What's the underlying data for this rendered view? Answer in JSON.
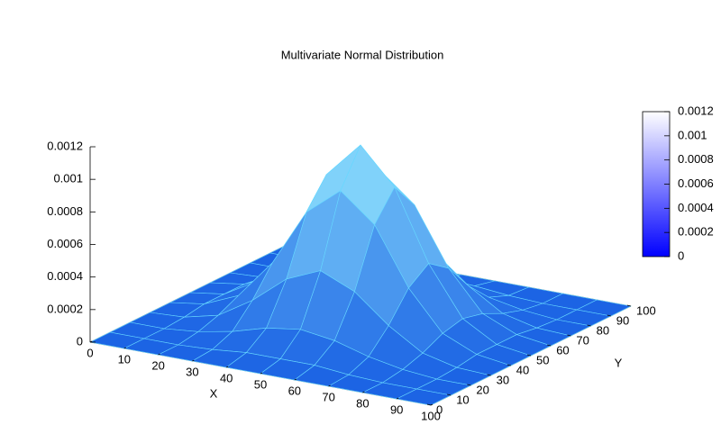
{
  "chart_data": {
    "type": "surface",
    "title": "Multivariate Normal Distribution",
    "xlabel": "X",
    "ylabel": "Y",
    "x": [
      0,
      10,
      20,
      30,
      40,
      50,
      60,
      70,
      80,
      90,
      100
    ],
    "y": [
      0,
      10,
      20,
      30,
      40,
      50,
      60,
      70,
      80,
      90,
      100
    ],
    "z": [
      [
        0,
        0,
        0,
        0,
        0,
        0,
        0,
        0,
        0,
        0,
        0
      ],
      [
        0,
        0,
        0,
        1e-05,
        3e-05,
        3e-05,
        3e-05,
        1e-05,
        0,
        0,
        0
      ],
      [
        0,
        0,
        2e-05,
        6e-05,
        0.00012,
        0.00015,
        0.00012,
        6e-05,
        2e-05,
        0,
        0
      ],
      [
        0,
        1e-05,
        6e-05,
        0.00019,
        0.00036,
        0.00045,
        0.00036,
        0.00019,
        6e-05,
        1e-05,
        0
      ],
      [
        0,
        3e-05,
        0.00012,
        0.00036,
        0.00071,
        0.00088,
        0.00071,
        0.00036,
        0.00012,
        3e-05,
        0
      ],
      [
        0,
        3e-05,
        0.00015,
        0.00045,
        0.00088,
        0.0011,
        0.00088,
        0.00045,
        0.00015,
        3e-05,
        0
      ],
      [
        0,
        3e-05,
        0.00012,
        0.00036,
        0.00071,
        0.00088,
        0.00071,
        0.00036,
        0.00012,
        3e-05,
        0
      ],
      [
        0,
        1e-05,
        6e-05,
        0.00019,
        0.00036,
        0.00045,
        0.00036,
        0.00019,
        6e-05,
        1e-05,
        0
      ],
      [
        0,
        0,
        2e-05,
        6e-05,
        0.00012,
        0.00015,
        0.00012,
        6e-05,
        2e-05,
        0,
        0
      ],
      [
        0,
        0,
        0,
        1e-05,
        3e-05,
        3e-05,
        3e-05,
        1e-05,
        0,
        0,
        0
      ],
      [
        0,
        0,
        0,
        0,
        0,
        0,
        0,
        0,
        0,
        0,
        0
      ]
    ],
    "xlim": [
      0,
      100
    ],
    "ylim": [
      0,
      100
    ],
    "zlim": [
      0,
      0.0012
    ],
    "xticks": [
      0,
      10,
      20,
      30,
      40,
      50,
      60,
      70,
      80,
      90,
      100
    ],
    "yticks": [
      0,
      10,
      20,
      30,
      40,
      50,
      60,
      70,
      80,
      90,
      100
    ],
    "zticks": [
      0,
      0.0002,
      0.0004,
      0.0006,
      0.0008,
      0.001,
      0.0012
    ],
    "colorbar": {
      "lim": [
        0,
        0.0012
      ],
      "ticks": [
        0,
        0.0002,
        0.0004,
        0.0006,
        0.0008,
        0.001,
        0.0012
      ],
      "palette": [
        "#0000ff",
        "#ffffff"
      ]
    }
  }
}
